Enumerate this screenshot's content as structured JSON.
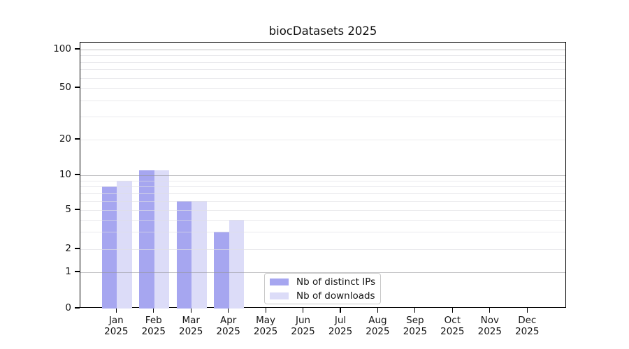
{
  "title": "biocDatasets 2025",
  "legend": {
    "items": [
      {
        "label": "Nb of distinct IPs",
        "color": "#a6a6f0"
      },
      {
        "label": "Nb of downloads",
        "color": "#dcdcf8"
      }
    ]
  },
  "chart_data": {
    "type": "bar",
    "title": "biocDatasets 2025",
    "categories": [
      {
        "month": "Jan",
        "year": "2025"
      },
      {
        "month": "Feb",
        "year": "2025"
      },
      {
        "month": "Mar",
        "year": "2025"
      },
      {
        "month": "Apr",
        "year": "2025"
      },
      {
        "month": "May",
        "year": "2025"
      },
      {
        "month": "Jun",
        "year": "2025"
      },
      {
        "month": "Jul",
        "year": "2025"
      },
      {
        "month": "Aug",
        "year": "2025"
      },
      {
        "month": "Sep",
        "year": "2025"
      },
      {
        "month": "Oct",
        "year": "2025"
      },
      {
        "month": "Nov",
        "year": "2025"
      },
      {
        "month": "Dec",
        "year": "2025"
      }
    ],
    "series": [
      {
        "name": "Nb of distinct IPs",
        "color": "#a6a6f0",
        "values": [
          8,
          11,
          6,
          3,
          0,
          0,
          0,
          0,
          0,
          0,
          0,
          0
        ]
      },
      {
        "name": "Nb of downloads",
        "color": "#dcdcf8",
        "values": [
          9,
          11,
          6,
          4,
          0,
          0,
          0,
          0,
          0,
          0,
          0,
          0
        ]
      }
    ],
    "y_axis": {
      "scale": "log-like with linear segment 0-1",
      "major_ticks": [
        0,
        1,
        2,
        5,
        10,
        20,
        50,
        100
      ],
      "minor_gridline_values": [
        3,
        4,
        6,
        7,
        8,
        9,
        30,
        40,
        60,
        70,
        80,
        90
      ],
      "decade_gridline_values": [
        1,
        10,
        100
      ],
      "range": [
        0,
        113
      ]
    },
    "x_axis": {
      "label_line2": "2025"
    },
    "grid": true,
    "legend_position": "inside-bottom-center",
    "colors": {
      "series1": "#a6a6f0",
      "series2": "#dcdcf8",
      "decade_gridline": "#c4c4c6",
      "minor_gridline": "#ededee",
      "spine": "#000000",
      "text": "#141414"
    }
  }
}
